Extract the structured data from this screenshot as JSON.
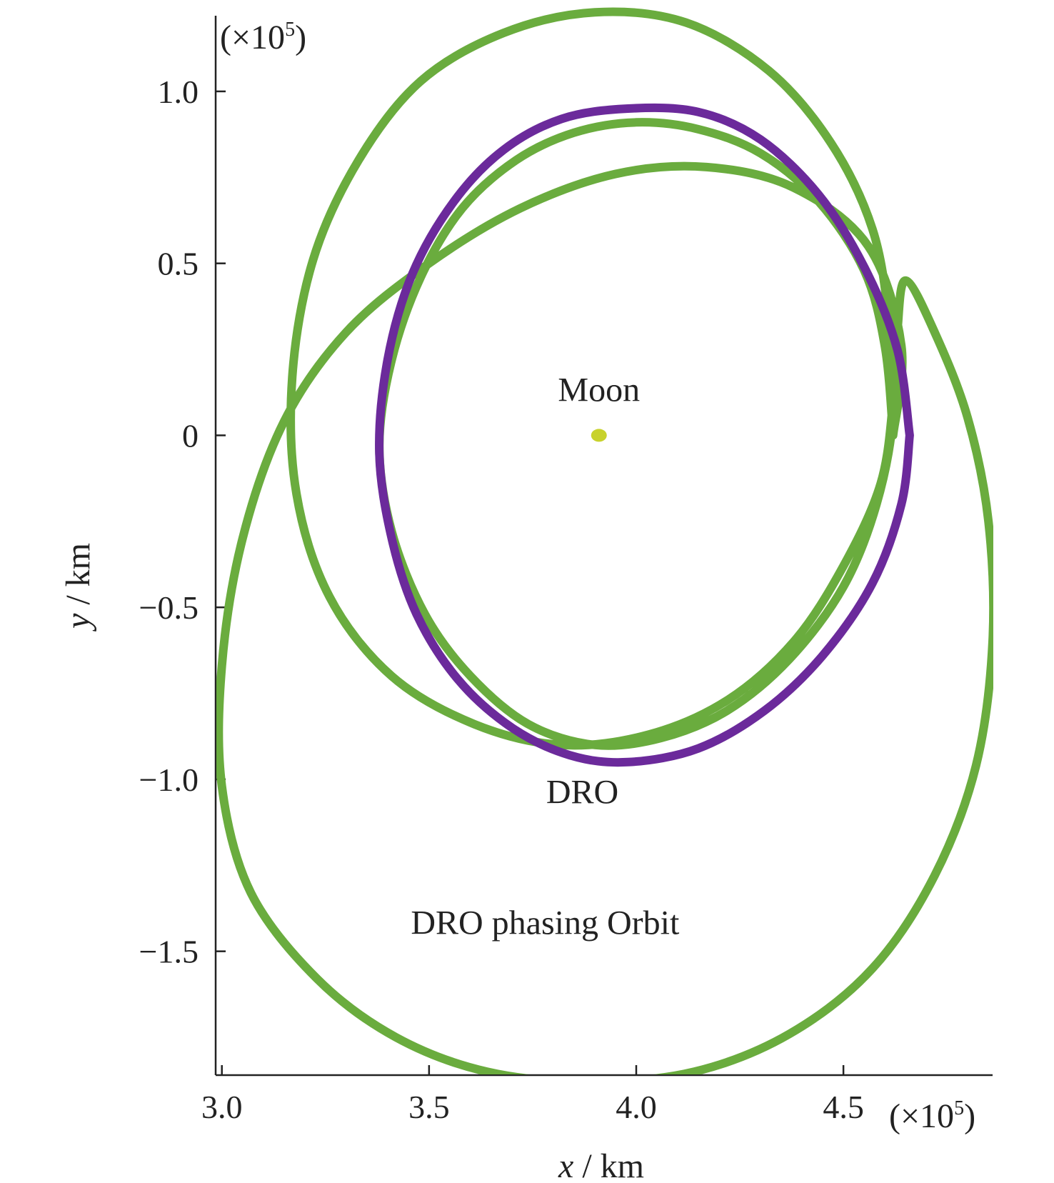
{
  "chart_data": {
    "type": "line",
    "xlabel": {
      "var": "x",
      "unit": " / km"
    },
    "ylabel": {
      "var": "y",
      "unit": " / km"
    },
    "x_multiplier": {
      "pre": "(×10",
      "exp": "5",
      "post": ")"
    },
    "y_multiplier": {
      "pre": "(×10",
      "exp": "5",
      "post": ")"
    },
    "xlim": [
      2.985,
      4.86
    ],
    "ylim": [
      -1.86,
      1.22
    ],
    "xticks": [
      {
        "value": 3.0,
        "label": "3.0"
      },
      {
        "value": 3.5,
        "label": "3.5"
      },
      {
        "value": 4.0,
        "label": "4.0"
      },
      {
        "value": 4.5,
        "label": "4.5"
      }
    ],
    "yticks": [
      {
        "value": 1.0,
        "label": "1.0"
      },
      {
        "value": 0.5,
        "label": "0.5"
      },
      {
        "value": 0.0,
        "label": "0"
      },
      {
        "value": -0.5,
        "label": "−0.5"
      },
      {
        "value": -1.0,
        "label": "−1.0"
      },
      {
        "value": -1.5,
        "label": "−1.5"
      }
    ],
    "grid": false,
    "series": [
      {
        "label": "DRO",
        "color": "#6b2a9b",
        "x": [
          4.66,
          4.63,
          4.55,
          4.44,
          4.3,
          4.15,
          3.98,
          3.82,
          3.68,
          3.56,
          3.46,
          3.4,
          3.38,
          3.41,
          3.47,
          3.57,
          3.7,
          3.84,
          3.98,
          4.15,
          4.31,
          4.45,
          4.57,
          4.64,
          4.66
        ],
        "y": [
          0.0,
          0.25,
          0.49,
          0.7,
          0.86,
          0.94,
          0.95,
          0.92,
          0.83,
          0.68,
          0.47,
          0.22,
          -0.05,
          -0.3,
          -0.52,
          -0.71,
          -0.85,
          -0.93,
          -0.95,
          -0.91,
          -0.8,
          -0.64,
          -0.43,
          -0.2,
          0.0
        ]
      },
      {
        "label": "DRO phasing Orbit",
        "color": "#6aac3e",
        "x": [
          4.62,
          4.6,
          4.55,
          4.44,
          4.3,
          4.15,
          4.0,
          3.85,
          3.71,
          3.58,
          3.48,
          3.41,
          3.38,
          3.41,
          3.49,
          3.6,
          3.74,
          3.9,
          4.06,
          4.22,
          4.37,
          4.5,
          4.58,
          4.62,
          4.61,
          4.57,
          4.47,
          4.32,
          4.12,
          3.9,
          3.68,
          3.48,
          3.33,
          3.22,
          3.17,
          3.18,
          3.26,
          3.41,
          3.61,
          3.82,
          4.03,
          4.22,
          4.38,
          4.5,
          4.59,
          4.62,
          4.63,
          4.65,
          4.72,
          4.8,
          4.85,
          4.86,
          4.82,
          4.72,
          4.57,
          4.37,
          4.14,
          3.89,
          3.64,
          3.42,
          3.23,
          3.07,
          3.0,
          3.0,
          3.05,
          3.15,
          3.3,
          3.5,
          3.72,
          3.95,
          4.17,
          4.38,
          4.56,
          4.64,
          4.62
        ],
        "y": [
          0.0,
          0.26,
          0.48,
          0.68,
          0.82,
          0.89,
          0.91,
          0.88,
          0.8,
          0.66,
          0.46,
          0.22,
          -0.03,
          -0.28,
          -0.52,
          -0.7,
          -0.84,
          -0.9,
          -0.88,
          -0.8,
          -0.65,
          -0.44,
          -0.2,
          0.06,
          0.33,
          0.6,
          0.85,
          1.06,
          1.2,
          1.23,
          1.17,
          1.03,
          0.8,
          0.51,
          0.17,
          -0.17,
          -0.47,
          -0.7,
          -0.84,
          -0.9,
          -0.87,
          -0.77,
          -0.6,
          -0.38,
          -0.14,
          0.1,
          0.3,
          0.45,
          0.3,
          0.05,
          -0.25,
          -0.6,
          -0.96,
          -1.28,
          -1.55,
          -1.74,
          -1.85,
          -1.88,
          -1.85,
          -1.75,
          -1.58,
          -1.33,
          -1.02,
          -0.67,
          -0.3,
          0.04,
          0.3,
          0.5,
          0.66,
          0.76,
          0.78,
          0.72,
          0.55,
          0.26,
          0.0
        ]
      },
      {
        "label": "Moon",
        "type": "scatter",
        "color": "#c8d22c",
        "x": [
          3.91
        ],
        "y": [
          0.0
        ]
      }
    ],
    "annotations": [
      {
        "text": "Moon",
        "x": 3.91,
        "y": 0.1
      },
      {
        "text": "DRO",
        "x": 3.87,
        "y": -1.07
      },
      {
        "text": "DRO phasing Orbit",
        "x": 3.78,
        "y": -1.45
      }
    ]
  }
}
